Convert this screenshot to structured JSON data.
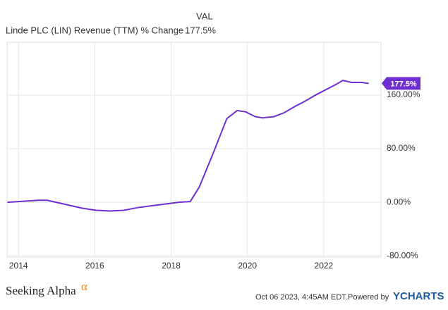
{
  "chart_data": {
    "type": "line",
    "title": "Linde PLC (LIN) Revenue (TTM) % Change",
    "legend_header": "VAL",
    "legend_value": "177.5%",
    "last_value_label": "177.5%",
    "x": [
      2013.71,
      2014.52,
      2014.75,
      2015.14,
      2015.68,
      2016.04,
      2016.4,
      2016.76,
      2017.12,
      2017.66,
      2018.2,
      2018.5,
      2018.74,
      2019.1,
      2019.46,
      2019.73,
      2019.96,
      2020.2,
      2020.4,
      2020.7,
      2020.97,
      2021.24,
      2021.51,
      2021.78,
      2022.05,
      2022.32,
      2022.5,
      2022.73,
      2023.0,
      2023.18
    ],
    "series": [
      {
        "name": "Linde PLC (LIN) Revenue (TTM) % Change",
        "color": "#6f2fd0",
        "values": [
          0,
          3,
          3,
          -2,
          -9,
          -12,
          -13,
          -12,
          -8,
          -4,
          0,
          1,
          23,
          73,
          125,
          137,
          135,
          128,
          126,
          128,
          134,
          143,
          151,
          160,
          168,
          176,
          182,
          179,
          179,
          177.5
        ]
      }
    ],
    "xlim": [
      2013.7,
      2023.5
    ],
    "xticks": [
      2014,
      2016,
      2018,
      2020,
      2022
    ],
    "ylim": [
      -82,
      239
    ],
    "yticks": [
      {
        "value": -80,
        "label": "-80.00%"
      },
      {
        "value": 0,
        "label": "0.00%"
      },
      {
        "value": 80,
        "label": "80.00%"
      },
      {
        "value": 160,
        "label": "160.00%"
      }
    ],
    "grid": true,
    "footer": {
      "brand": "Seeking Alpha",
      "brand_mark": "α",
      "date": "Oct 06 2023, 4:45AM EDT.",
      "powered": "Powered by",
      "provider": "YCHARTS"
    }
  }
}
